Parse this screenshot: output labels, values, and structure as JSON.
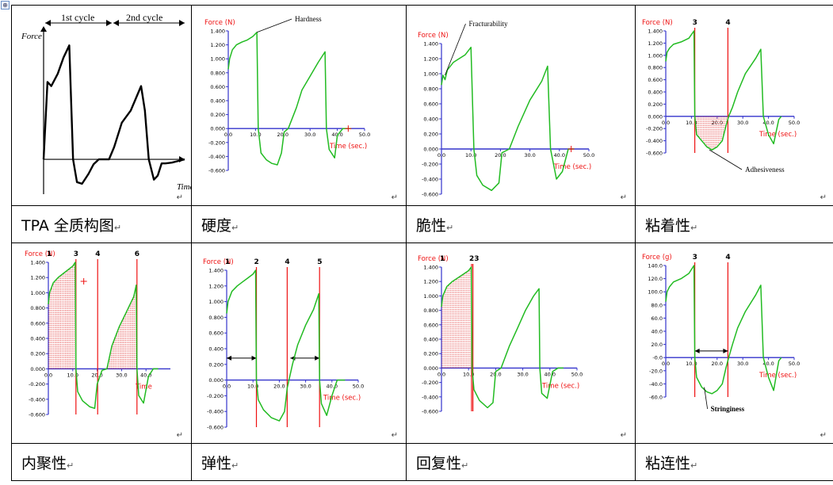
{
  "handle_symbol": "⊕",
  "return_mark": "↵",
  "cells": [
    {
      "caption": "TPA 全质构图",
      "chart_data": {
        "type": "line",
        "ylabel": "Force",
        "xlabel": "Time",
        "x_ticks": [],
        "y_ticks": [],
        "cycle_labels": [
          "1st cycle",
          "2nd cycle"
        ],
        "series": [
          {
            "x": [
              0,
              0.6,
              1.2,
              2.2,
              3.1,
              4.0,
              4.6,
              5.2,
              6.0,
              7.0,
              7.8,
              8.6,
              9.4,
              10.2,
              11.0,
              12.2,
              13.6,
              14.4,
              15.2,
              15.8,
              16.4,
              17.2,
              17.8,
              18.4,
              19.0,
              20.0,
              21.0,
              22.0
            ],
            "y": [
              0,
              0.95,
              0.9,
              1.05,
              1.25,
              1.4,
              0,
              -0.28,
              -0.3,
              -0.18,
              -0.06,
              0,
              0,
              0,
              0.15,
              0.45,
              0.6,
              0.75,
              0.9,
              0.6,
              0,
              -0.25,
              -0.2,
              -0.05,
              -0.05,
              -0.04,
              -0.02,
              0
            ]
          }
        ]
      }
    },
    {
      "caption": "硬度",
      "chart_data": {
        "type": "line",
        "ylabel": "Force  (N)",
        "xlabel": "Time (sec.)",
        "xlim": [
          0,
          50
        ],
        "ylim": [
          -0.6,
          1.4
        ],
        "x_ticks": [
          "0.0",
          "10.0",
          "20.0",
          "30.0",
          "40.0",
          "50.0"
        ],
        "y_ticks": [
          "1.400",
          "1.200",
          "1.000",
          "0.800",
          "0.600",
          "0.400",
          "0.200",
          "0.000",
          "-0.200",
          "-0.400",
          "-0.600"
        ],
        "annotations": [
          {
            "text": "Hardness",
            "x": 10.5,
            "y": 1.38
          }
        ],
        "series": [
          {
            "x": [
              0,
              0.5,
              1.5,
              3,
              5,
              7,
              9,
              10.5,
              11,
              12,
              14,
              16,
              18,
              19.5,
              20.5,
              22,
              25,
              27,
              30,
              33,
              35.5,
              36,
              37,
              39,
              40,
              42,
              44,
              45
            ],
            "y": [
              0.85,
              1.0,
              1.13,
              1.2,
              1.24,
              1.27,
              1.32,
              1.38,
              0,
              -0.35,
              -0.45,
              -0.5,
              -0.52,
              -0.35,
              -0.05,
              0,
              0.3,
              0.55,
              0.75,
              0.95,
              1.1,
              0,
              -0.3,
              -0.42,
              -0.1,
              0,
              0,
              0
            ]
          }
        ]
      }
    },
    {
      "caption": "脆性",
      "chart_data": {
        "type": "line",
        "ylabel": "Force    (N)",
        "xlabel": "Time (sec.)",
        "xlim": [
          0,
          50
        ],
        "ylim": [
          -0.6,
          1.4
        ],
        "x_ticks": [
          "0.0",
          "10.0",
          "20.0",
          "30.0",
          "40.0",
          "50.0"
        ],
        "y_ticks": [
          "1.400",
          "1.200",
          "1.000",
          "0.800",
          "0.600",
          "0.400",
          "0.200",
          "0.000",
          "-0.200",
          "-0.400",
          "-0.600"
        ],
        "annotations": [
          {
            "text": "Fracturability",
            "x": 1.2,
            "y": 0.98
          }
        ],
        "series": [
          {
            "x": [
              0,
              0.5,
              1.2,
              2,
              4,
              6,
              8,
              10,
              11,
              12,
              14,
              17,
              19.5,
              20.5,
              23,
              26,
              30,
              34,
              36,
              37,
              39,
              41,
              43,
              45
            ],
            "y": [
              0.85,
              0.98,
              0.92,
              1.05,
              1.15,
              1.2,
              1.25,
              1.35,
              0,
              -0.35,
              -0.48,
              -0.55,
              -0.45,
              -0.05,
              0,
              0.3,
              0.65,
              0.9,
              1.1,
              0,
              -0.4,
              -0.3,
              0,
              0
            ]
          }
        ]
      }
    },
    {
      "caption": "粘着性",
      "chart_data": {
        "type": "line",
        "ylabel": "Force   (N)",
        "xlabel": "Time (sec.)",
        "xlim": [
          0,
          50
        ],
        "ylim": [
          -0.6,
          1.4
        ],
        "x_ticks": [
          "0.0",
          "10.0",
          "20.0",
          "30.0",
          "40.0",
          "50.0"
        ],
        "y_ticks": [
          "1.400",
          "1.200",
          "1.000",
          "0.800",
          "0.600",
          "0.400",
          "0.200",
          "0.000",
          "-0.200",
          "-0.400",
          "-0.600"
        ],
        "markers": [
          "3",
          "4"
        ],
        "annotations": [
          {
            "text": "Adhesiveness",
            "x": 17,
            "y": -0.55
          }
        ],
        "series": [
          {
            "x": [
              0,
              0.5,
              1.5,
              3,
              6,
              9,
              11,
              11.3,
              12,
              14,
              16,
              18,
              20,
              22,
              23.5,
              24.5,
              26,
              28,
              31,
              35,
              37,
              38,
              40,
              42,
              44,
              45
            ],
            "y": [
              0.9,
              1.05,
              1.12,
              1.18,
              1.22,
              1.28,
              1.4,
              0,
              -0.3,
              -0.4,
              -0.5,
              -0.55,
              -0.5,
              -0.4,
              -0.15,
              0,
              0.15,
              0.4,
              0.7,
              0.95,
              1.1,
              0,
              -0.3,
              -0.45,
              -0.05,
              0
            ]
          }
        ]
      }
    },
    {
      "caption": "内聚性",
      "chart_data": {
        "type": "line",
        "ylabel": "Force   (N)",
        "xlabel": "Time",
        "xlim": [
          0,
          50
        ],
        "ylim": [
          -0.6,
          1.4
        ],
        "x_ticks": [
          "0.0",
          "10.0",
          "20.0",
          "30.0",
          "40.0"
        ],
        "y_ticks": [
          "1.400",
          "1.200",
          "1.000",
          "0.800",
          "0.600",
          "0.400",
          "0.200",
          "0.000",
          "-0.200",
          "-0.400",
          "-0.600"
        ],
        "markers": [
          "1",
          "3",
          "4",
          "6"
        ],
        "series": [
          {
            "x": [
              0,
              0.5,
              2,
              4,
              6,
              8,
              10,
              11,
              11.3,
              12,
              14,
              17,
              19,
              20,
              22,
              24,
              26,
              29,
              32,
              35,
              36,
              36.3,
              37,
              39,
              41,
              43,
              45
            ],
            "y": [
              0.85,
              1.0,
              1.13,
              1.2,
              1.25,
              1.3,
              1.35,
              1.4,
              0,
              -0.3,
              -0.42,
              -0.5,
              -0.52,
              -0.2,
              -0.02,
              0,
              0.3,
              0.55,
              0.75,
              0.95,
              1.1,
              0,
              -0.35,
              -0.45,
              -0.1,
              0,
              0
            ]
          }
        ]
      }
    },
    {
      "caption": "弹性",
      "chart_data": {
        "type": "line",
        "ylabel": "Force   (N)",
        "xlabel": "Time (sec.)",
        "xlim": [
          0,
          50
        ],
        "ylim": [
          -0.6,
          1.4
        ],
        "x_ticks": [
          "0.0",
          "10.0",
          "20.0",
          "30.0",
          "40.0",
          "50.0"
        ],
        "y_ticks": [
          "1.400",
          "1.200",
          "1.000",
          "0.800",
          "0.600",
          "0.400",
          "0.200",
          "0.000",
          "-0.200",
          "-0.400",
          "-0.600"
        ],
        "markers": [
          "1",
          "2",
          "4",
          "5"
        ],
        "series": [
          {
            "x": [
              0,
              0.5,
              2,
              4,
              6,
              8,
              10,
              11,
              11.3,
              12,
              14,
              17,
              20,
              22,
              23,
              25,
              27,
              30,
              33,
              35,
              35.3,
              36,
              38,
              40,
              42,
              44,
              45
            ],
            "y": [
              0.85,
              1.0,
              1.13,
              1.2,
              1.25,
              1.3,
              1.35,
              1.4,
              0,
              -0.25,
              -0.38,
              -0.48,
              -0.52,
              -0.4,
              -0.1,
              0.2,
              0.45,
              0.7,
              0.9,
              1.1,
              0,
              -0.3,
              -0.45,
              -0.2,
              0,
              0,
              0
            ]
          }
        ]
      }
    },
    {
      "caption": "回复性",
      "chart_data": {
        "type": "line",
        "ylabel": "Force    (N)",
        "xlabel": "Time (sec.)",
        "xlim": [
          0,
          50
        ],
        "ylim": [
          -0.6,
          1.4
        ],
        "x_ticks": [
          "0.0",
          "10.0",
          "20.0",
          "30.0",
          "40.0",
          "50.0"
        ],
        "y_ticks": [
          "1.400",
          "1.200",
          "1.000",
          "0.800",
          "0.600",
          "0.400",
          "0.200",
          "0.000",
          "-0.200",
          "-0.400",
          "-0.600"
        ],
        "markers": [
          "1",
          "23"
        ],
        "series": [
          {
            "x": [
              0,
              0.5,
              2,
              4,
              6,
              8,
              10,
              11,
              11.3,
              12,
              14,
              17,
              19,
              20,
              22,
              25,
              28,
              31,
              34,
              36,
              36.3,
              37,
              39,
              41,
              43,
              45
            ],
            "y": [
              0.85,
              1.0,
              1.13,
              1.2,
              1.25,
              1.3,
              1.35,
              1.4,
              0,
              -0.3,
              -0.45,
              -0.55,
              -0.48,
              -0.05,
              0,
              0.3,
              0.55,
              0.8,
              1.0,
              1.1,
              0,
              -0.35,
              -0.42,
              -0.05,
              0,
              0
            ]
          }
        ]
      }
    },
    {
      "caption": "粘连性",
      "chart_data": {
        "type": "line",
        "ylabel": "Force   (g)",
        "xlabel": "Time (sec.)",
        "xlim": [
          0,
          50
        ],
        "ylim": [
          -60,
          140
        ],
        "x_ticks": [
          "0.0",
          "10.0",
          "20.0",
          "30.0",
          "40.0",
          "50.0"
        ],
        "y_ticks": [
          "140.0",
          "120.0",
          "100.0",
          "80.0",
          "60.0",
          "40.0",
          "20.0",
          "-0.0",
          "-20.0",
          "-40.0",
          "-60.0"
        ],
        "markers": [
          "3",
          "4"
        ],
        "annotations": [
          {
            "text": "Stringiness",
            "x": 15,
            "y": -45
          }
        ],
        "series": [
          {
            "x": [
              0,
              0.5,
              1.5,
              3,
              6,
              9,
              11,
              11.3,
              12,
              14,
              16,
              18,
              20,
              22,
              23.5,
              24.5,
              26,
              28,
              31,
              35,
              37,
              38,
              40,
              42,
              44,
              45
            ],
            "y": [
              85,
              100,
              108,
              115,
              120,
              128,
              140,
              0,
              -30,
              -45,
              -52,
              -55,
              -50,
              -40,
              -15,
              0,
              20,
              45,
              70,
              95,
              110,
              0,
              -30,
              -50,
              -5,
              0
            ]
          }
        ]
      }
    }
  ]
}
